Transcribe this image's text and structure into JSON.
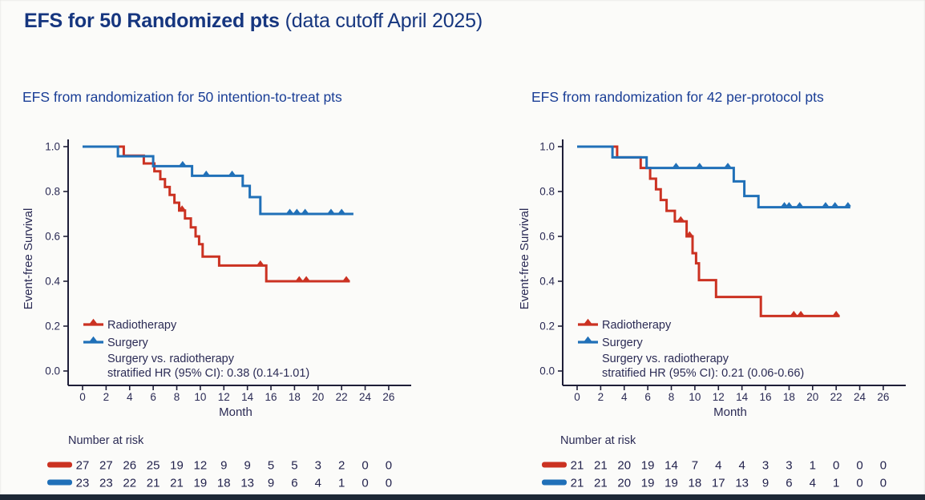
{
  "slide": {
    "title_main": "EFS for 50 Randomized pts",
    "title_suffix": "(data cutoff April 2025)",
    "title_color": "#16367f",
    "footer_bar_color": "#1d2836"
  },
  "colors": {
    "radiotherapy": "#cb3222",
    "surgery": "#2070b8",
    "axis": "#1e1e38",
    "text": "#2b2b55"
  },
  "chart_data": [
    {
      "type": "line",
      "variant": "kaplan-meier-step",
      "subtitle": "EFS from randomization for 50 intention-to-treat pts",
      "xlabel": "Month",
      "ylabel": "Event-free Survival",
      "xlim": [
        0,
        26
      ],
      "ylim": [
        0.0,
        1.0
      ],
      "grid": false,
      "legend_position": "inside-bottom-left",
      "x_ticks": [
        0,
        2,
        4,
        6,
        8,
        10,
        12,
        14,
        16,
        18,
        20,
        22,
        24,
        26
      ],
      "y_ticks": [
        "1.0",
        "0.8",
        "0.6",
        "0.4",
        "0.2",
        "0.0"
      ],
      "legend_note": [
        "Surgery vs. radiotherapy",
        "stratified HR (95% CI): 0.38 (0.14-1.01)"
      ],
      "series": [
        {
          "name": "Radiotherapy",
          "color": "#cb3222",
          "steps": [
            [
              0,
              1.0
            ],
            [
              3.5,
              1.0
            ],
            [
              3.5,
              0.96
            ],
            [
              5.2,
              0.96
            ],
            [
              5.2,
              0.925
            ],
            [
              6.1,
              0.925
            ],
            [
              6.1,
              0.89
            ],
            [
              6.6,
              0.89
            ],
            [
              6.6,
              0.855
            ],
            [
              7.0,
              0.855
            ],
            [
              7.0,
              0.82
            ],
            [
              7.4,
              0.82
            ],
            [
              7.4,
              0.785
            ],
            [
              7.8,
              0.785
            ],
            [
              7.8,
              0.75
            ],
            [
              8.2,
              0.75
            ],
            [
              8.2,
              0.715
            ],
            [
              8.7,
              0.715
            ],
            [
              8.7,
              0.68
            ],
            [
              9.2,
              0.68
            ],
            [
              9.2,
              0.64
            ],
            [
              9.6,
              0.64
            ],
            [
              9.6,
              0.6
            ],
            [
              9.9,
              0.6
            ],
            [
              9.9,
              0.565
            ],
            [
              10.2,
              0.565
            ],
            [
              10.2,
              0.51
            ],
            [
              11.6,
              0.51
            ],
            [
              11.6,
              0.47
            ],
            [
              15.6,
              0.47
            ],
            [
              15.6,
              0.4
            ],
            [
              22.7,
              0.4
            ]
          ],
          "censor_marks": [
            [
              8.45,
              0.715
            ],
            [
              15.1,
              0.47
            ],
            [
              18.4,
              0.4
            ],
            [
              19.0,
              0.4
            ],
            [
              22.4,
              0.4
            ]
          ]
        },
        {
          "name": "Surgery",
          "color": "#2070b8",
          "steps": [
            [
              0,
              1.0
            ],
            [
              3.0,
              1.0
            ],
            [
              3.0,
              0.957
            ],
            [
              6.0,
              0.957
            ],
            [
              6.0,
              0.913
            ],
            [
              9.3,
              0.913
            ],
            [
              9.3,
              0.87
            ],
            [
              13.6,
              0.87
            ],
            [
              13.6,
              0.825
            ],
            [
              14.2,
              0.825
            ],
            [
              14.2,
              0.775
            ],
            [
              15.1,
              0.775
            ],
            [
              15.1,
              0.7
            ],
            [
              23.0,
              0.7
            ]
          ],
          "censor_marks": [
            [
              8.5,
              0.913
            ],
            [
              10.5,
              0.87
            ],
            [
              12.7,
              0.87
            ],
            [
              17.6,
              0.7
            ],
            [
              18.2,
              0.7
            ],
            [
              18.9,
              0.7
            ],
            [
              21.1,
              0.7
            ],
            [
              22.0,
              0.7
            ]
          ]
        }
      ],
      "risk_table": {
        "title": "Number at risk",
        "months": [
          0,
          2,
          4,
          6,
          8,
          10,
          12,
          14,
          16,
          18,
          20,
          22,
          24,
          26
        ],
        "rows": [
          {
            "name": "Radiotherapy",
            "color": "#cb3222",
            "values": [
              27,
              27,
              26,
              25,
              19,
              12,
              9,
              9,
              5,
              5,
              3,
              2,
              0,
              0
            ]
          },
          {
            "name": "Surgery",
            "color": "#2070b8",
            "values": [
              23,
              23,
              22,
              21,
              21,
              19,
              18,
              13,
              9,
              6,
              4,
              1,
              0,
              0
            ]
          }
        ]
      }
    },
    {
      "type": "line",
      "variant": "kaplan-meier-step",
      "subtitle": "EFS from randomization for 42 per-protocol pts",
      "xlabel": "Month",
      "ylabel": "Event-free Survival",
      "xlim": [
        0,
        26
      ],
      "ylim": [
        0.0,
        1.0
      ],
      "grid": false,
      "legend_position": "inside-bottom-left",
      "x_ticks": [
        0,
        2,
        4,
        6,
        8,
        10,
        12,
        14,
        16,
        18,
        20,
        22,
        24,
        26
      ],
      "y_ticks": [
        "1.0",
        "0.8",
        "0.6",
        "0.4",
        "0.2",
        "0.0"
      ],
      "legend_note": [
        "Surgery vs. radiotherapy",
        "stratified HR (95% CI): 0.21 (0.06-0.66)"
      ],
      "series": [
        {
          "name": "Radiotherapy",
          "color": "#cb3222",
          "steps": [
            [
              0,
              1.0
            ],
            [
              3.4,
              1.0
            ],
            [
              3.4,
              0.952
            ],
            [
              5.4,
              0.952
            ],
            [
              5.4,
              0.905
            ],
            [
              6.2,
              0.905
            ],
            [
              6.2,
              0.857
            ],
            [
              6.7,
              0.857
            ],
            [
              6.7,
              0.81
            ],
            [
              7.1,
              0.81
            ],
            [
              7.1,
              0.762
            ],
            [
              7.6,
              0.762
            ],
            [
              7.6,
              0.714
            ],
            [
              8.3,
              0.714
            ],
            [
              8.3,
              0.667
            ],
            [
              9.3,
              0.667
            ],
            [
              9.3,
              0.6
            ],
            [
              9.8,
              0.6
            ],
            [
              9.8,
              0.525
            ],
            [
              10.1,
              0.525
            ],
            [
              10.1,
              0.48
            ],
            [
              10.35,
              0.48
            ],
            [
              10.35,
              0.405
            ],
            [
              11.8,
              0.405
            ],
            [
              11.8,
              0.33
            ],
            [
              15.6,
              0.33
            ],
            [
              15.6,
              0.245
            ],
            [
              22.3,
              0.245
            ]
          ],
          "censor_marks": [
            [
              8.8,
              0.667
            ],
            [
              9.55,
              0.6
            ],
            [
              18.4,
              0.245
            ],
            [
              19.0,
              0.245
            ],
            [
              22.0,
              0.245
            ]
          ]
        },
        {
          "name": "Surgery",
          "color": "#2070b8",
          "steps": [
            [
              0,
              1.0
            ],
            [
              3.0,
              1.0
            ],
            [
              3.0,
              0.952
            ],
            [
              5.9,
              0.952
            ],
            [
              5.9,
              0.905
            ],
            [
              13.3,
              0.905
            ],
            [
              13.3,
              0.845
            ],
            [
              14.2,
              0.845
            ],
            [
              14.2,
              0.78
            ],
            [
              15.4,
              0.78
            ],
            [
              15.4,
              0.73
            ],
            [
              23.2,
              0.73
            ]
          ],
          "censor_marks": [
            [
              8.4,
              0.905
            ],
            [
              10.4,
              0.905
            ],
            [
              12.8,
              0.905
            ],
            [
              17.6,
              0.73
            ],
            [
              18.0,
              0.73
            ],
            [
              18.9,
              0.73
            ],
            [
              21.1,
              0.73
            ],
            [
              21.9,
              0.73
            ],
            [
              23.0,
              0.73
            ]
          ]
        }
      ],
      "risk_table": {
        "title": "Number at risk",
        "months": [
          0,
          2,
          4,
          6,
          8,
          10,
          12,
          14,
          16,
          18,
          20,
          22,
          24,
          26
        ],
        "rows": [
          {
            "name": "Radiotherapy",
            "color": "#cb3222",
            "values": [
              21,
              21,
              20,
              19,
              14,
              7,
              4,
              4,
              3,
              3,
              1,
              0,
              0,
              0
            ]
          },
          {
            "name": "Surgery",
            "color": "#2070b8",
            "values": [
              21,
              21,
              20,
              19,
              19,
              18,
              17,
              13,
              9,
              6,
              4,
              1,
              0,
              0
            ]
          }
        ]
      }
    }
  ]
}
